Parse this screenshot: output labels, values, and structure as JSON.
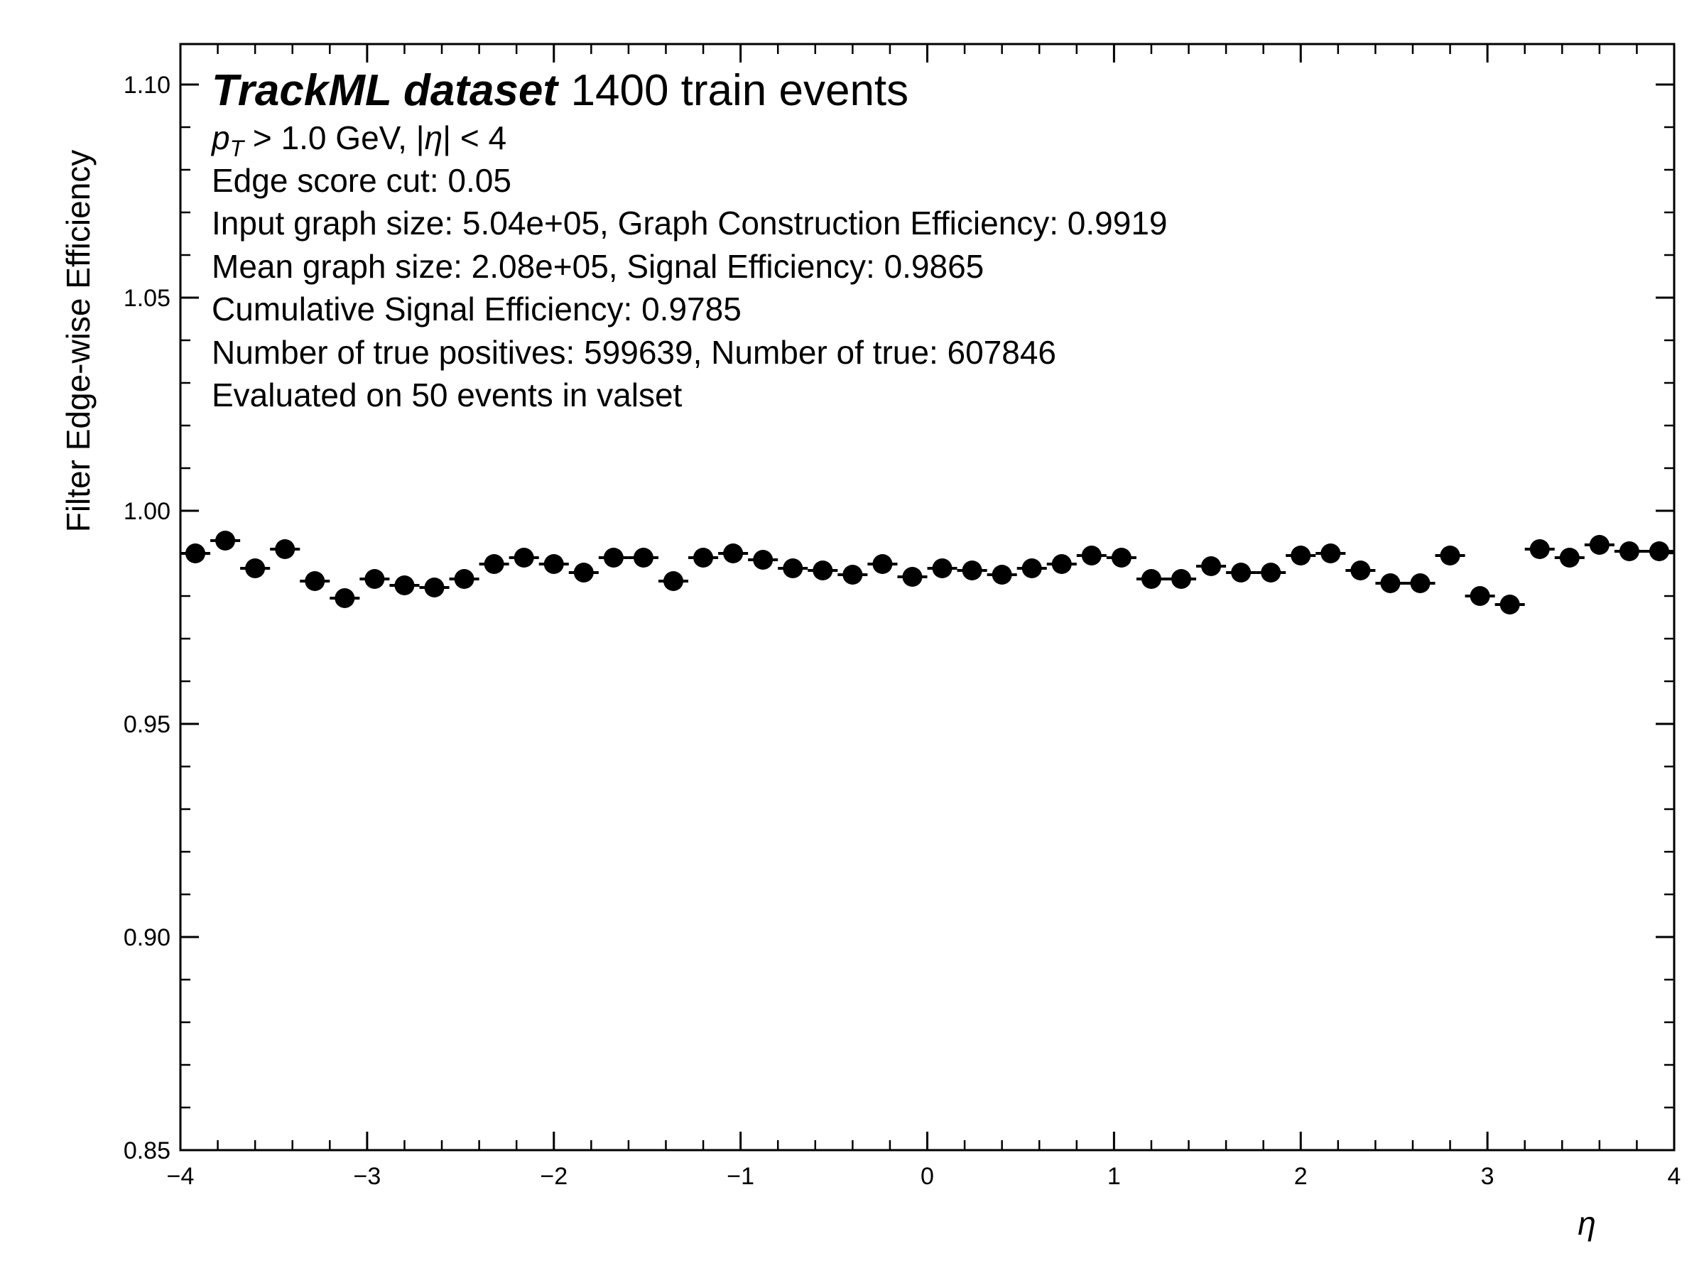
{
  "chart_data": {
    "type": "scatter",
    "title_bold": "TrackML dataset",
    "title_rest": "1400 train events",
    "annotations": {
      "kinematics": {
        "pt_var": "p",
        "pt_sub": "T",
        "pt_cut": " > 1.0 GeV, |",
        "eta": "η",
        "eta_cut": "| < 4"
      },
      "lines": [
        "Edge score cut: 0.05",
        "Input graph size: 5.04e+05, Graph Construction Efficiency: 0.9919",
        "Mean graph size: 2.08e+05, Signal Efficiency: 0.9865",
        "Cumulative Signal Efficiency: 0.9785",
        "Number of true positives: 599639, Number of true: 607846",
        "Evaluated on 50 events in valset"
      ]
    },
    "xlabel": "η",
    "ylabel": "Filter Edge-wise Efficiency",
    "xlim": [
      -4,
      4
    ],
    "ylim": [
      0.85,
      1.11
    ],
    "x_ticks": [
      -4,
      -3,
      -2,
      -1,
      0,
      1,
      2,
      3,
      4
    ],
    "x_tick_labels": [
      "−4",
      "−3",
      "−2",
      "−1",
      "0",
      "1",
      "2",
      "3",
      "4"
    ],
    "y_ticks": [
      0.85,
      0.9,
      0.95,
      1.0,
      1.05,
      1.1
    ],
    "y_tick_labels": [
      "0.85",
      "0.90",
      "0.95",
      "1.00",
      "1.05",
      "1.10"
    ],
    "bin_width": 0.16,
    "x": [
      -3.92,
      -3.76,
      -3.6,
      -3.44,
      -3.28,
      -3.12,
      -2.96,
      -2.8,
      -2.64,
      -2.48,
      -2.32,
      -2.16,
      -2.0,
      -1.84,
      -1.68,
      -1.52,
      -1.36,
      -1.2,
      -1.04,
      -0.88,
      -0.72,
      -0.56,
      -0.4,
      -0.24,
      -0.08,
      0.08,
      0.24,
      0.4,
      0.56,
      0.72,
      0.88,
      1.04,
      1.2,
      1.36,
      1.52,
      1.68,
      1.84,
      2.0,
      2.16,
      2.32,
      2.48,
      2.64,
      2.8,
      2.96,
      3.12,
      3.28,
      3.44,
      3.6,
      3.76,
      3.92
    ],
    "y": [
      0.99,
      0.993,
      0.9865,
      0.991,
      0.9835,
      0.9795,
      0.984,
      0.9825,
      0.982,
      0.984,
      0.9875,
      0.989,
      0.9875,
      0.9855,
      0.989,
      0.989,
      0.9835,
      0.989,
      0.99,
      0.9885,
      0.9865,
      0.986,
      0.985,
      0.9875,
      0.9845,
      0.9865,
      0.986,
      0.985,
      0.9865,
      0.9875,
      0.9895,
      0.989,
      0.984,
      0.984,
      0.987,
      0.9855,
      0.9855,
      0.9895,
      0.99,
      0.986,
      0.983,
      0.983,
      0.9895,
      0.98,
      0.978,
      0.991,
      0.989,
      0.992,
      0.9905,
      0.9905
    ],
    "marker_color": "#000000",
    "grid": false
  }
}
